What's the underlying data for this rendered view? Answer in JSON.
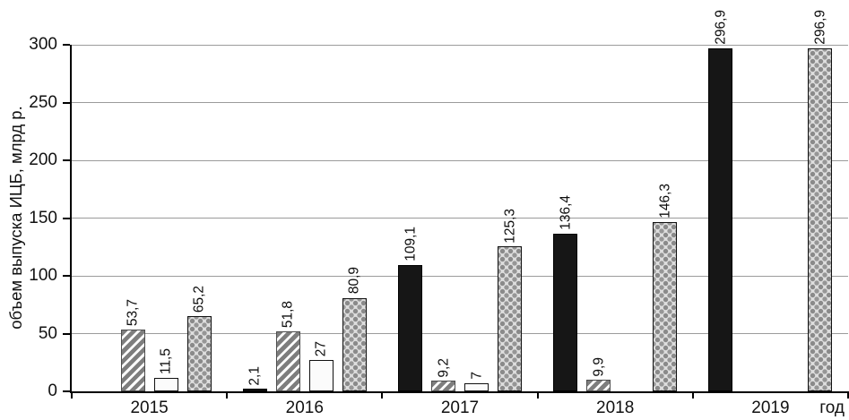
{
  "chart_data": {
    "type": "bar",
    "title": "",
    "ylabel": "объем выпуска ИЦБ, млрд р.",
    "xlabel": "год",
    "categories": [
      "2015",
      "2016",
      "2017",
      "2018",
      "2019"
    ],
    "series": [
      {
        "name": "solid-black",
        "pattern": "solid",
        "color": "#161616",
        "values": [
          null,
          2.1,
          109.1,
          136.4,
          296.9
        ],
        "labels": [
          null,
          "2,1",
          "109,1",
          "136,4",
          "296,9"
        ]
      },
      {
        "name": "diagonal-hatch",
        "pattern": "diagonal-stripes",
        "color": "#7e7e7e",
        "values": [
          53.7,
          51.8,
          9.2,
          9.9,
          null
        ],
        "labels": [
          "53,7",
          "51,8",
          "9,2",
          "9,9",
          null
        ]
      },
      {
        "name": "plain-white",
        "pattern": "solid-outline",
        "color": "#fbfbfb",
        "values": [
          11.5,
          27,
          7,
          null,
          null
        ],
        "labels": [
          "11,5",
          "27",
          "7",
          null,
          null
        ]
      },
      {
        "name": "dotted-texture",
        "pattern": "checkered-dots",
        "color": "#dedede",
        "values": [
          65.2,
          80.9,
          125.3,
          146.3,
          296.9
        ],
        "labels": [
          "65,2",
          "80,9",
          "125,3",
          "146,3",
          "296,9"
        ]
      }
    ],
    "ylim": [
      0,
      300
    ],
    "yticks": [
      0,
      50,
      100,
      150,
      200,
      250,
      300
    ],
    "grid": true,
    "legend_position": "none",
    "value_label_orientation": "vertical",
    "decimal_separator": ","
  }
}
